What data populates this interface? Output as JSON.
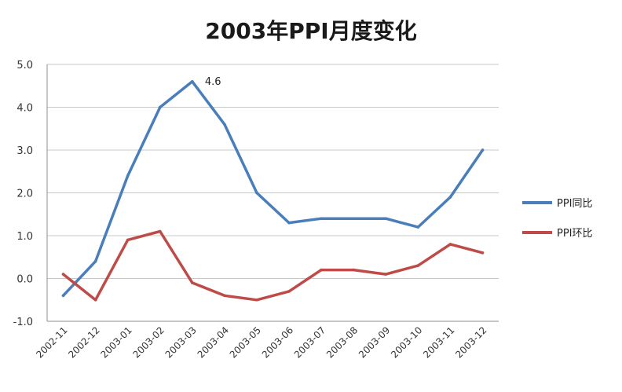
{
  "chart_data": {
    "type": "line",
    "title": "2003年PPI月度变化",
    "xlabel": "",
    "ylabel": "",
    "categories": [
      "2002-11",
      "2002-12",
      "2003-01",
      "2003-02",
      "2003-03",
      "2003-04",
      "2003-05",
      "2003-06",
      "2003-07",
      "2003-08",
      "2003-09",
      "2003-10",
      "2003-11",
      "2003-12"
    ],
    "yticks": [
      "5.0",
      "4.0",
      "3.0",
      "2.0",
      "1.0",
      "0.0",
      "-1.0"
    ],
    "ylim": [
      -1.0,
      5.0
    ],
    "grid": true,
    "legend_position": "right",
    "series": [
      {
        "name": "PPI同比",
        "color": "#4A7EBB",
        "values": [
          -0.4,
          0.4,
          2.4,
          4.0,
          4.6,
          3.6,
          2.0,
          1.3,
          1.4,
          1.4,
          1.4,
          1.2,
          1.9,
          3.0
        ]
      },
      {
        "name": "PPI环比",
        "color": "#BE4B48",
        "values": [
          0.1,
          -0.5,
          0.9,
          1.1,
          -0.1,
          -0.4,
          -0.5,
          -0.3,
          0.2,
          0.2,
          0.1,
          0.3,
          0.8,
          0.6
        ]
      }
    ],
    "annotations": [
      {
        "series": 0,
        "index": 4,
        "text": "4.6"
      }
    ]
  }
}
